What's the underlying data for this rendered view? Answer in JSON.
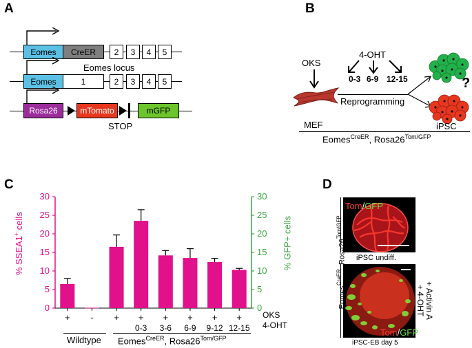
{
  "panels": {
    "a": "A",
    "b": "B",
    "c": "C",
    "d": "D"
  },
  "panel_a": {
    "row1": {
      "eomes": "Eomes",
      "creer": "CreER",
      "exons": [
        "2",
        "3",
        "4",
        "5"
      ]
    },
    "locus_label": "Eomes locus",
    "row2": {
      "eomes": "Eomes",
      "exon1": "1",
      "exons": [
        "2",
        "3",
        "4",
        "5"
      ]
    },
    "row3": {
      "rosa": "Rosa26",
      "mtomato": "mTomato",
      "mgfp": "mGFP",
      "stop": "STOP"
    },
    "colors": {
      "eomes": "#5bc0e4",
      "creer": "#7f7f7f",
      "rosa": "#9b2d9b",
      "mtomato": "#e8371f",
      "mgfp": "#6cc52b"
    }
  },
  "panel_b": {
    "oks": "OKS",
    "ohT": "4-OHT",
    "windows": [
      "0-3",
      "6-9",
      "12-15"
    ],
    "reprogramming": "Reprogramming",
    "mef": "MEF",
    "ipsc": "iPSC",
    "question": "?",
    "genotype_base": "Eomes",
    "genotype_sup": "CreER",
    "genotype_sep": ", Rosa26",
    "genotype_sup2": "Tom/GFP"
  },
  "chart_data": {
    "type": "bar",
    "categories": [
      "Wildtype +",
      "Wildtype -",
      "No 4-OHT",
      "0-3",
      "3-6",
      "6-9",
      "9-12",
      "12-15"
    ],
    "values": [
      6.5,
      0.1,
      16.5,
      23.5,
      14.2,
      13.5,
      12.4,
      10.3
    ],
    "errors": [
      1.5,
      0.1,
      3.2,
      3.0,
      1.3,
      2.5,
      1.0,
      0.4
    ],
    "bar_color": "#e0118a",
    "ylabel_left": "% SSEA1+ cells",
    "ylabel_left_base": "% SSEA1",
    "ylabel_left_sup": "+",
    "ylabel_left_tail": " cells",
    "ylabel_right": "% GFP+ cells",
    "left_color": "#e0118a",
    "right_color": "#3aa640",
    "ylim": [
      0,
      30
    ],
    "yticks": [
      "0",
      "5",
      "10",
      "15",
      "20",
      "25",
      "30"
    ],
    "oks_row": [
      "+",
      "-",
      "+",
      "+",
      "+",
      "+",
      "+",
      "+"
    ],
    "ohT_row": [
      "",
      "",
      "",
      "0-3",
      "3-6",
      "6-9",
      "9-12",
      "12-15"
    ],
    "row_label_oks": "OKS",
    "row_label_ohT": "4-OHT",
    "group_wildtype": "Wildtype",
    "group_mutant_base": "Eomes",
    "group_mutant_sup": "CreER",
    "group_mutant_sep": ", Rosa26",
    "group_mutant_sup2": "Tom/GFP"
  },
  "panel_d": {
    "top_tom": "Tom",
    "top_slash": "/",
    "top_gfp": "GFP",
    "top_caption": "iPSC undiff.",
    "bottom_tom": "Tom",
    "bottom_slash": "/",
    "bottom_gfp": "GFP",
    "bottom_caption": "iPSC-EB day 5",
    "side_label_base": "Eomes",
    "side_label_sup": "CreER",
    "side_label_sep": ", Rosa26",
    "side_label_sup2": "Tom/GFP",
    "treatment_line1": "+ Activin A",
    "treatment_line2": "+ 4-OHT"
  }
}
